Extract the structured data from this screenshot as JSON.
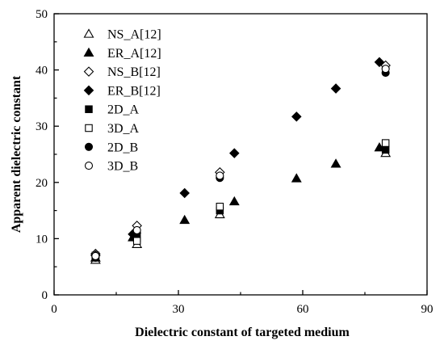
{
  "chart_data": {
    "type": "scatter",
    "xlabel": "Dielectric constant  of targeted medium",
    "ylabel": "Apparent dielectric constant",
    "xlim": [
      0,
      90
    ],
    "ylim": [
      0,
      50
    ],
    "xticks": [
      0,
      30,
      60,
      90
    ],
    "yticks": [
      0,
      10,
      20,
      30,
      40,
      50
    ],
    "grid": false,
    "legend": "top-left",
    "series": [
      {
        "name": "NS_A[12]",
        "marker": "triangle-open",
        "points": [
          [
            10,
            6.2
          ],
          [
            20,
            9.0
          ],
          [
            40,
            14.3
          ],
          [
            80,
            25.2
          ]
        ]
      },
      {
        "name": "ER_A[12]",
        "marker": "triangle-filled",
        "points": [
          [
            10,
            6.6
          ],
          [
            19,
            10.2
          ],
          [
            31.5,
            13.3
          ],
          [
            43.5,
            16.6
          ],
          [
            58.5,
            20.7
          ],
          [
            68,
            23.3
          ],
          [
            78.5,
            26.2
          ]
        ]
      },
      {
        "name": "NS_B[12]",
        "marker": "diamond-open",
        "points": [
          [
            10,
            7.3
          ],
          [
            20,
            12.3
          ],
          [
            40,
            21.8
          ],
          [
            80,
            40.8
          ]
        ]
      },
      {
        "name": "ER_B[12]",
        "marker": "diamond-filled",
        "points": [
          [
            10,
            7.0
          ],
          [
            19,
            10.8
          ],
          [
            31.5,
            18.1
          ],
          [
            43.5,
            25.2
          ],
          [
            58.5,
            31.7
          ],
          [
            68,
            36.7
          ],
          [
            78.5,
            41.4
          ]
        ]
      },
      {
        "name": "2D_A",
        "marker": "square-filled",
        "points": [
          [
            10,
            6.8
          ],
          [
            20,
            10.0
          ],
          [
            40,
            15.0
          ],
          [
            80,
            25.8
          ]
        ]
      },
      {
        "name": "3D_A",
        "marker": "square-open",
        "points": [
          [
            10,
            7.0
          ],
          [
            20,
            9.6
          ],
          [
            40,
            15.7
          ],
          [
            80,
            27.0
          ]
        ]
      },
      {
        "name": "2D_B",
        "marker": "circle-filled",
        "points": [
          [
            10,
            6.6
          ],
          [
            20,
            11.0
          ],
          [
            40,
            20.8
          ],
          [
            80,
            39.5
          ]
        ]
      },
      {
        "name": "3D_B",
        "marker": "circle-open",
        "points": [
          [
            10,
            6.9
          ],
          [
            20,
            11.5
          ],
          [
            40,
            21.2
          ],
          [
            80,
            40.2
          ]
        ]
      }
    ]
  }
}
